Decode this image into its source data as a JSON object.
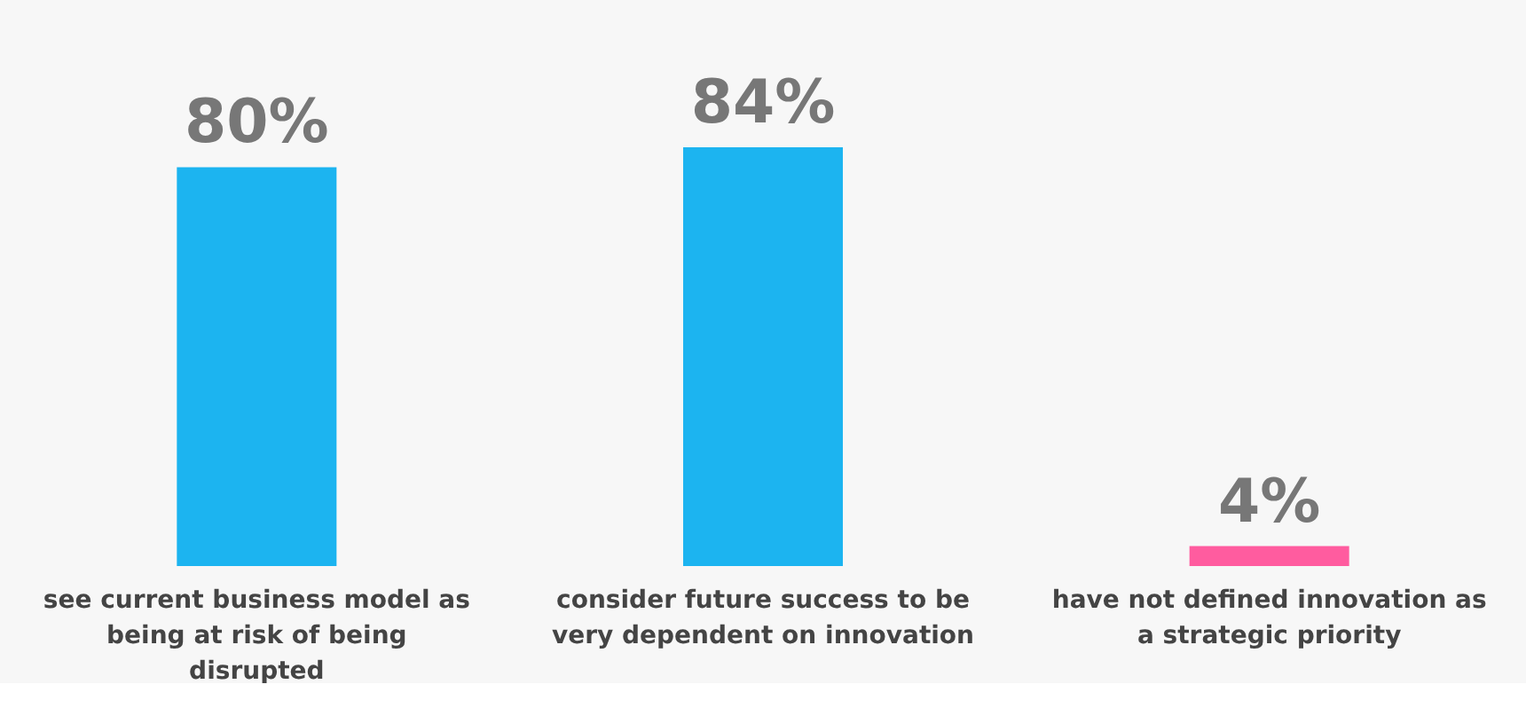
{
  "chart_data": {
    "type": "bar",
    "categories": [
      "see current business model as being at risk of being disrupted",
      "consider future success to be very dependent on innovation",
      "have not defined innovation as a strategic priority"
    ],
    "values": [
      80,
      84,
      4
    ],
    "value_labels": [
      "80%",
      "84%",
      "4%"
    ],
    "colors": [
      "#1cb4f0",
      "#1cb4f0",
      "#ff5c9f"
    ]
  }
}
